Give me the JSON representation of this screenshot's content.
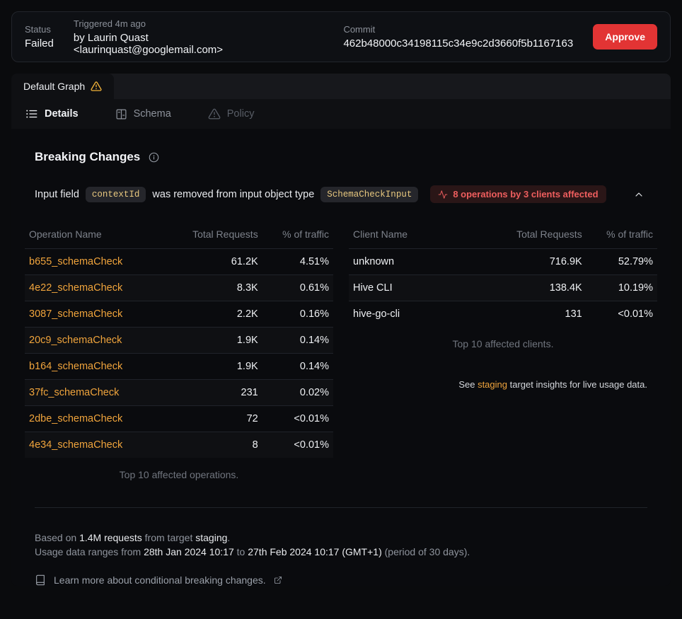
{
  "header": {
    "status_label": "Status",
    "status_value": "Failed",
    "triggered_label": "Triggered 4m ago",
    "triggered_value": "by Laurin Quast <laurinquast@googlemail.com>",
    "commit_label": "Commit",
    "commit_value": "462b48000c34198115c34e9c2d3660f5b1167163",
    "approve_label": "Approve"
  },
  "graph_tab": {
    "label": "Default Graph"
  },
  "nav": {
    "details_label": "Details",
    "schema_label": "Schema",
    "policy_label": "Policy"
  },
  "breaking_changes": {
    "title": "Breaking Changes",
    "change": {
      "prefix": "Input field",
      "field_code": "contextId",
      "middle": "was removed from input object type",
      "type_code": "SchemaCheckInput",
      "affected_badge": "8 operations by 3 clients affected"
    }
  },
  "tables": {
    "operations": {
      "columns": [
        "Operation Name",
        "Total Requests",
        "% of traffic"
      ],
      "rows": [
        [
          "b655_schemaCheck",
          "61.2K",
          "4.51%"
        ],
        [
          "4e22_schemaCheck",
          "8.3K",
          "0.61%"
        ],
        [
          "3087_schemaCheck",
          "2.2K",
          "0.16%"
        ],
        [
          "20c9_schemaCheck",
          "1.9K",
          "0.14%"
        ],
        [
          "b164_schemaCheck",
          "1.9K",
          "0.14%"
        ],
        [
          "37fc_schemaCheck",
          "231",
          "0.02%"
        ],
        [
          "2dbe_schemaCheck",
          "72",
          "<0.01%"
        ],
        [
          "4e34_schemaCheck",
          "8",
          "<0.01%"
        ]
      ],
      "caption": "Top 10 affected operations."
    },
    "clients": {
      "columns": [
        "Client Name",
        "Total Requests",
        "% of traffic"
      ],
      "rows": [
        [
          "unknown",
          "716.9K",
          "52.79%"
        ],
        [
          "Hive CLI",
          "138.4K",
          "10.19%"
        ],
        [
          "hive-go-cli",
          "131",
          "<0.01%"
        ]
      ],
      "caption": "Top 10 affected clients."
    }
  },
  "insights_note": {
    "prefix": "See ",
    "link": "staging",
    "suffix": " target insights for live usage data."
  },
  "footer": {
    "based_prefix": "Based on ",
    "requests": "1.4M requests",
    "from_target": " from target ",
    "target_name": "staging",
    "period_end": ".",
    "ranges_prefix": "Usage data ranges from ",
    "range_start": "28th Jan 2024 10:17",
    "range_to": " to ",
    "range_end": "27th Feb 2024 10:17 (GMT+1)",
    "range_suffix": " (period of 30 days).",
    "learn_more": "Learn more about conditional breaking changes."
  },
  "colors": {
    "approve_red": "#e23434",
    "warning_yellow": "#f2b239",
    "link_orange": "#f0a43c",
    "affected_red": "#ef5e5e",
    "code_yellow": "#e8c87f"
  }
}
